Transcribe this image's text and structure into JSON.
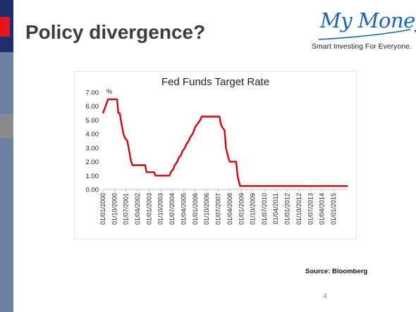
{
  "slide": {
    "title": "Policy divergence?",
    "page_number": "4",
    "source": "Source: Bloomberg"
  },
  "brand": {
    "logo_text": "My Money",
    "tagline": "Smart Investing For Everyone.",
    "logo_color": "#1a63b8"
  },
  "colors": {
    "left_bar": "#6e7fa5",
    "left_bar_top": "#1f2f6b",
    "accent_red": "#e8141c",
    "series_line": "#d9000e"
  },
  "chart_data": {
    "type": "line",
    "title": "Fed Funds Target Rate",
    "unit_label": "%",
    "ylim": [
      0,
      7
    ],
    "yticks": [
      "0.00",
      "1.00",
      "2.00",
      "3.00",
      "4.00",
      "5.00",
      "6.00",
      "7.00"
    ],
    "x_tick_labels": [
      "01/01/2000",
      "01/10/2000",
      "01/07/2001",
      "01/04/2002",
      "01/01/2003",
      "01/10/2003",
      "01/07/2004",
      "01/04/2005",
      "01/01/2006",
      "01/10/2006",
      "01/07/2007",
      "01/04/2008",
      "01/01/2009",
      "01/10/2009",
      "01/07/2010",
      "01/04/2011",
      "01/01/2012",
      "01/10/2012",
      "01/07/2013",
      "01/04/2014",
      "01/01/2015"
    ],
    "xlim": [
      "2000-01-01",
      "2015-12-01"
    ],
    "grid": false,
    "legend": "none",
    "series": [
      {
        "points": [
          [
            "2000-01-01",
            5.5
          ],
          [
            "2000-02-01",
            5.75
          ],
          [
            "2000-03-01",
            6.0
          ],
          [
            "2000-05-01",
            6.5
          ],
          [
            "2000-12-01",
            6.5
          ],
          [
            "2001-01-01",
            5.5
          ],
          [
            "2001-02-01",
            5.5
          ],
          [
            "2001-03-01",
            5.0
          ],
          [
            "2001-04-01",
            4.5
          ],
          [
            "2001-05-01",
            4.0
          ],
          [
            "2001-06-01",
            3.75
          ],
          [
            "2001-08-01",
            3.5
          ],
          [
            "2001-09-01",
            3.0
          ],
          [
            "2001-10-01",
            2.5
          ],
          [
            "2001-11-01",
            2.0
          ],
          [
            "2001-12-01",
            1.75
          ],
          [
            "2002-10-01",
            1.75
          ],
          [
            "2002-11-01",
            1.25
          ],
          [
            "2003-05-01",
            1.25
          ],
          [
            "2003-06-01",
            1.0
          ],
          [
            "2004-05-01",
            1.0
          ],
          [
            "2004-06-01",
            1.25
          ],
          [
            "2004-08-01",
            1.5
          ],
          [
            "2004-09-01",
            1.75
          ],
          [
            "2004-11-01",
            2.0
          ],
          [
            "2004-12-01",
            2.25
          ],
          [
            "2005-02-01",
            2.5
          ],
          [
            "2005-03-01",
            2.75
          ],
          [
            "2005-05-01",
            3.0
          ],
          [
            "2005-06-01",
            3.25
          ],
          [
            "2005-08-01",
            3.5
          ],
          [
            "2005-09-01",
            3.75
          ],
          [
            "2005-11-01",
            4.0
          ],
          [
            "2005-12-01",
            4.25
          ],
          [
            "2006-01-01",
            4.5
          ],
          [
            "2006-03-01",
            4.75
          ],
          [
            "2006-05-01",
            5.0
          ],
          [
            "2006-06-01",
            5.25
          ],
          [
            "2007-08-01",
            5.25
          ],
          [
            "2007-09-01",
            4.75
          ],
          [
            "2007-10-01",
            4.5
          ],
          [
            "2007-12-01",
            4.25
          ],
          [
            "2008-01-01",
            3.0
          ],
          [
            "2008-03-01",
            2.25
          ],
          [
            "2008-04-01",
            2.0
          ],
          [
            "2008-09-01",
            2.0
          ],
          [
            "2008-10-01",
            1.0
          ],
          [
            "2008-12-01",
            0.25
          ],
          [
            "2015-11-01",
            0.25
          ],
          [
            "2015-12-01",
            0.25
          ]
        ]
      }
    ]
  }
}
